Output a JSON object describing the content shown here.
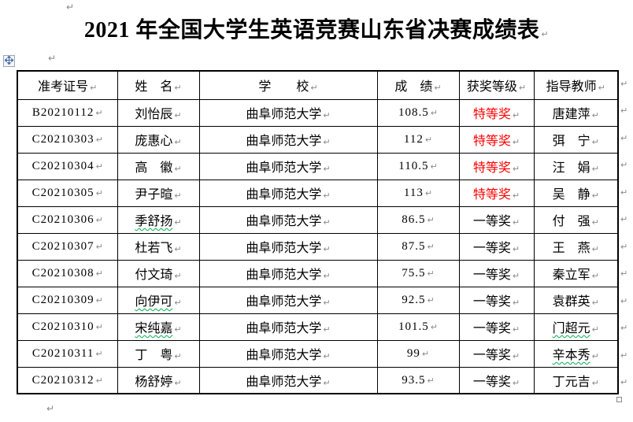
{
  "title": "2021 年全国大学生英语竞赛山东省决赛成绩表",
  "marks": {
    "pilcrow": "↵",
    "cell_mark": "↵"
  },
  "colors": {
    "award_special_red": "#ff0000",
    "spellcheck_green": "#00b050",
    "formatting_mark_gray": "#8a8a8a"
  },
  "table": {
    "headers": [
      "准考证号",
      "姓　名",
      "学　　校",
      "成　绩",
      "获奖等级",
      "指导教师"
    ],
    "rows": [
      {
        "id": "B20210112",
        "name": "刘怡辰",
        "school": "曲阜师范大学",
        "score": "108.5",
        "award": "特等奖",
        "teacher": "唐建萍"
      },
      {
        "id": "C20210303",
        "name": "庞惠心",
        "school": "曲阜师范大学",
        "score": "112",
        "award": "特等奖",
        "teacher": "弭　宁"
      },
      {
        "id": "C20210304",
        "name": "高　徽",
        "school": "曲阜师范大学",
        "score": "110.5",
        "award": "特等奖",
        "teacher": "汪　娟"
      },
      {
        "id": "C20210305",
        "name": "尹子暄",
        "school": "曲阜师范大学",
        "score": "113",
        "award": "特等奖",
        "teacher": "吴　静"
      },
      {
        "id": "C20210306",
        "name": "季舒扬",
        "school": "曲阜师范大学",
        "score": "86.5",
        "award": "一等奖",
        "teacher": "付　强"
      },
      {
        "id": "C20210307",
        "name": "杜若飞",
        "school": "曲阜师范大学",
        "score": "87.5",
        "award": "一等奖",
        "teacher": "王　燕"
      },
      {
        "id": "C20210308",
        "name": "付文琦",
        "school": "曲阜师范大学",
        "score": "75.5",
        "award": "一等奖",
        "teacher": "秦立军"
      },
      {
        "id": "C20210309",
        "name": "向伊可",
        "school": "曲阜师范大学",
        "score": "92.5",
        "award": "一等奖",
        "teacher": "袁群英"
      },
      {
        "id": "C20210310",
        "name": "宋纯嘉",
        "school": "曲阜师范大学",
        "score": "101.5",
        "award": "一等奖",
        "teacher": "门超元"
      },
      {
        "id": "C20210311",
        "name": "丁　粤",
        "school": "曲阜师范大学",
        "score": "99",
        "award": "一等奖",
        "teacher": "辛本秀"
      },
      {
        "id": "C20210312",
        "name": "杨舒婷",
        "school": "曲阜师范大学",
        "score": "93.5",
        "award": "一等奖",
        "teacher": "丁元吉"
      }
    ]
  }
}
